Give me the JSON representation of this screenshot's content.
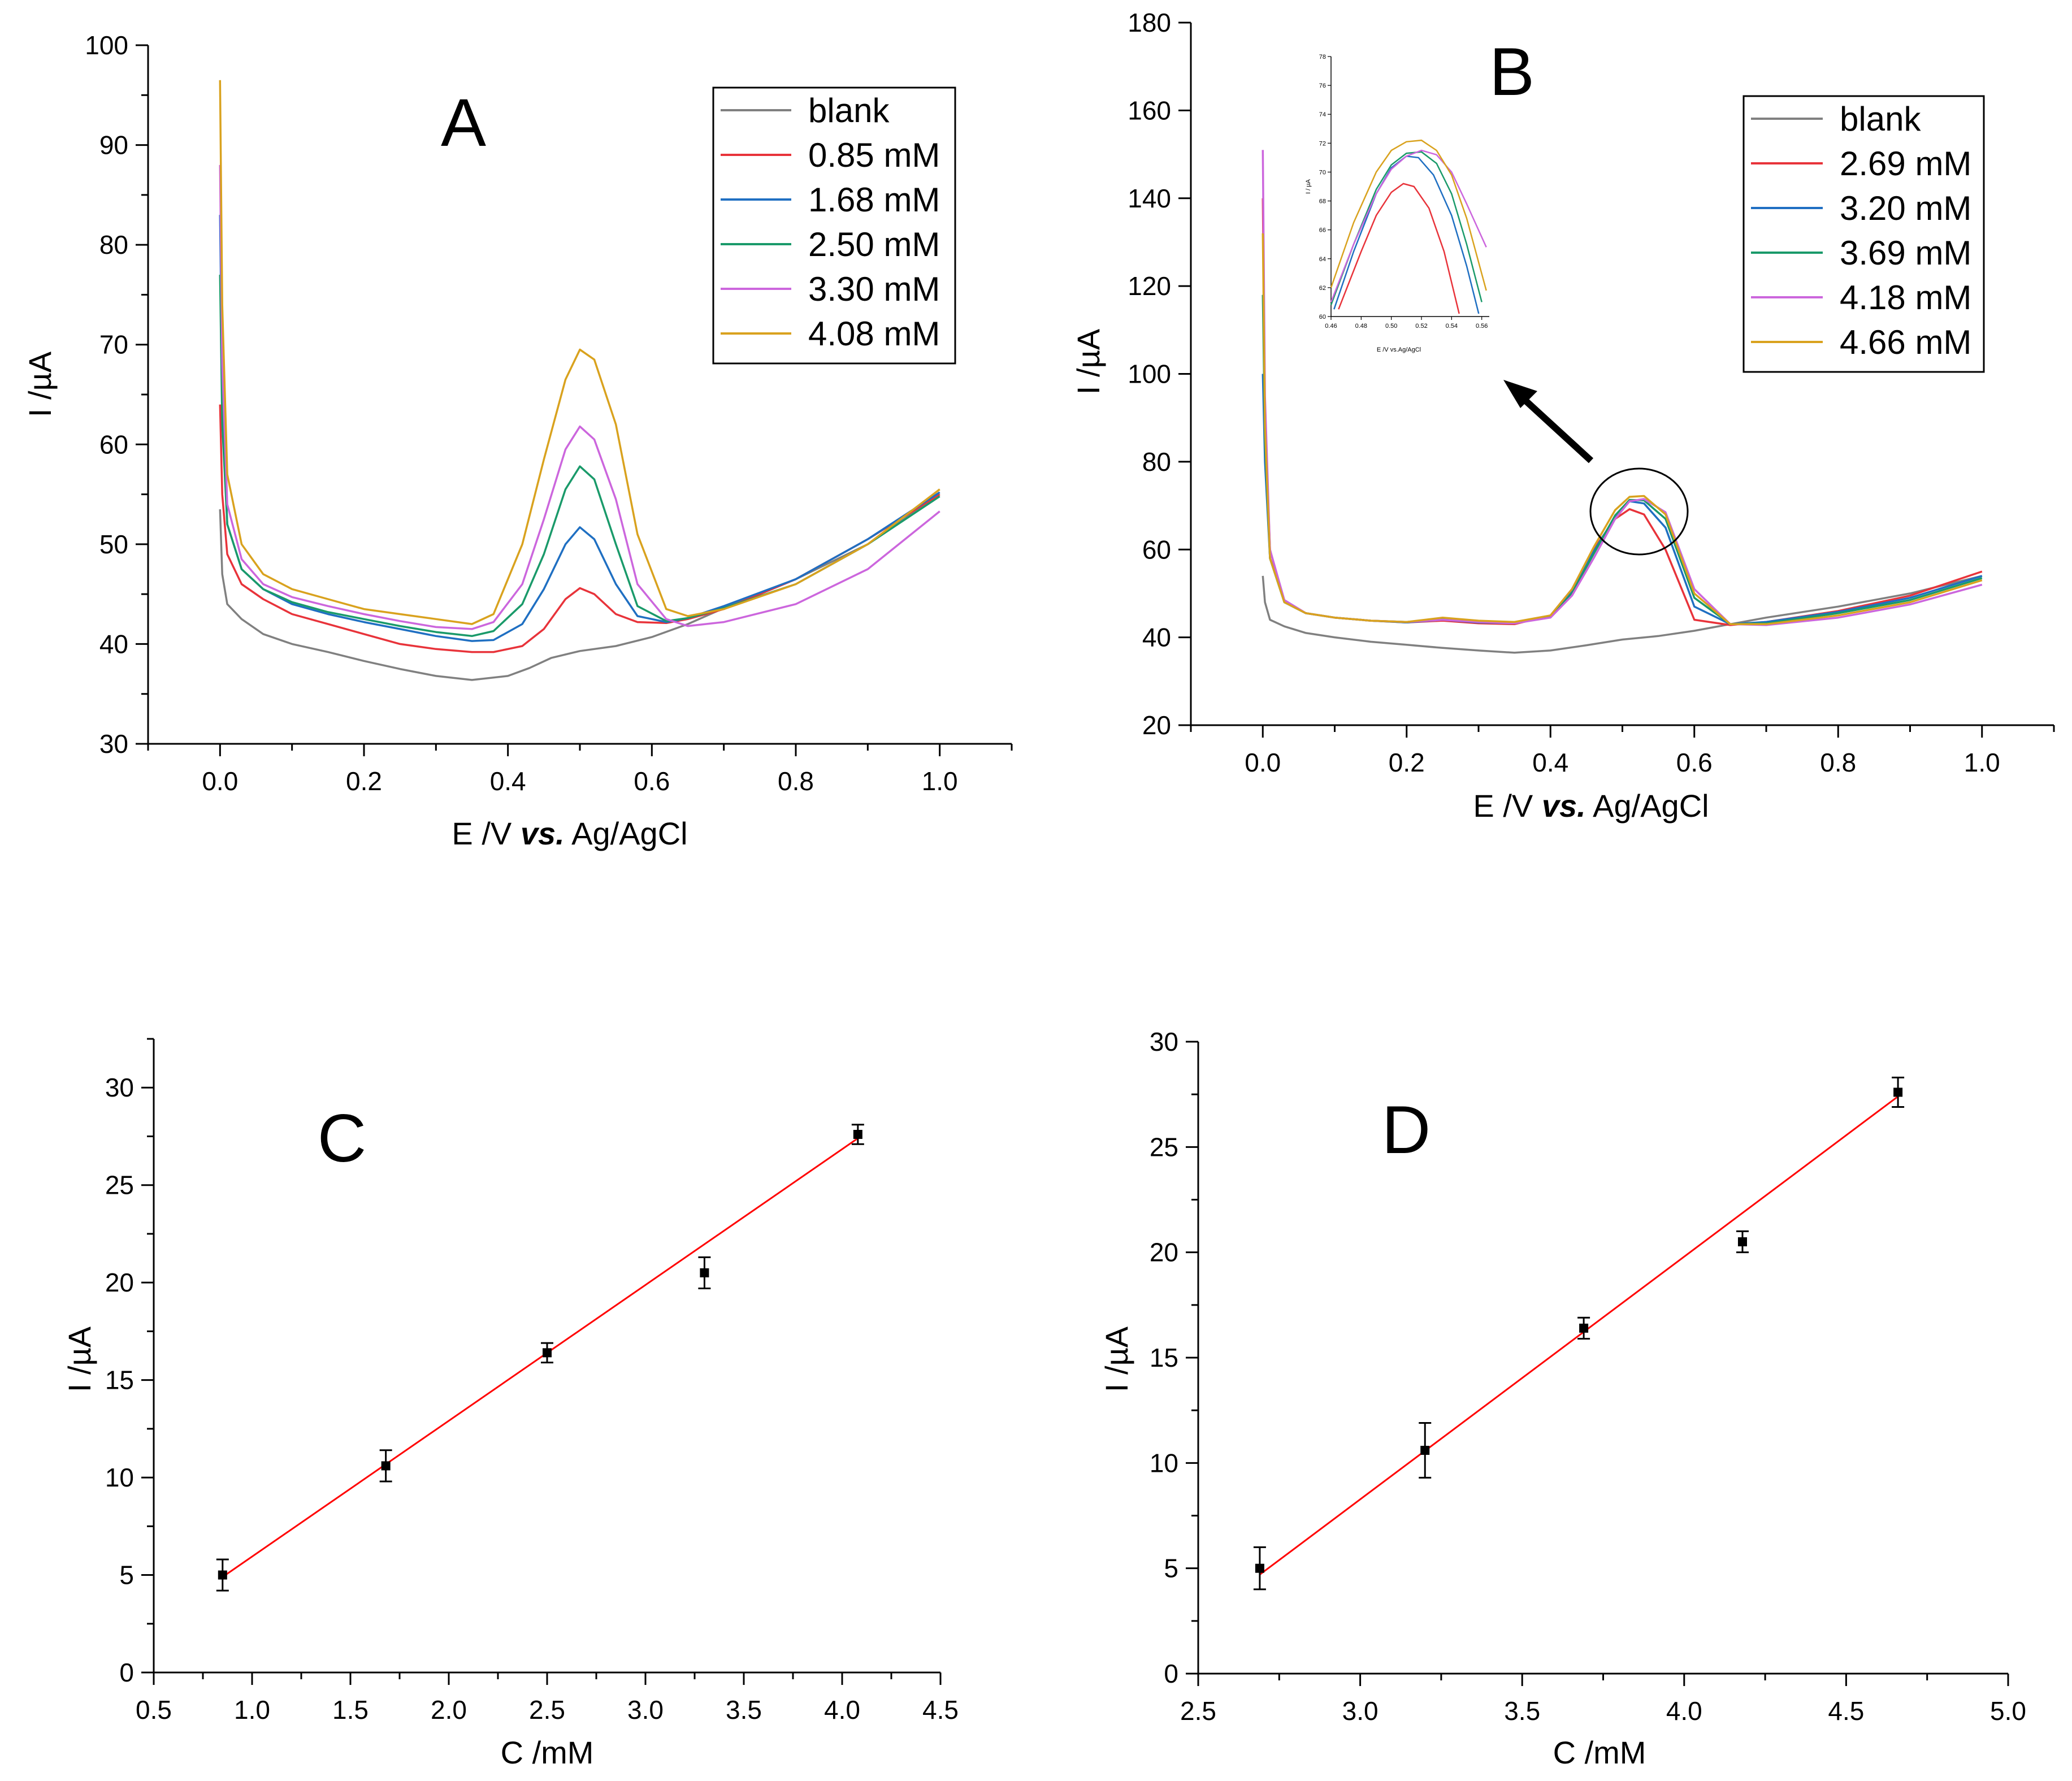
{
  "figure": {
    "panels": [
      "A",
      "B",
      "C",
      "D"
    ]
  },
  "chart_data": [
    {
      "panel": "A",
      "type": "line",
      "xlabel_main": "E /V ",
      "xlabel_italic": "vs.",
      "xlabel_tail": " Ag/AgCl",
      "ylabel": "I /µA",
      "xlim": [
        -0.1,
        1.1
      ],
      "ylim": [
        30,
        100
      ],
      "xticks": [
        "0.0",
        "0.2",
        "0.4",
        "0.6",
        "0.8",
        "1.0"
      ],
      "yticks": [
        "30",
        "40",
        "50",
        "60",
        "70",
        "80",
        "90",
        "100"
      ],
      "legend_position": "top-right",
      "series": [
        {
          "name": "blank",
          "color": "#808080",
          "x": [
            0.0,
            0.003,
            0.01,
            0.03,
            0.06,
            0.1,
            0.15,
            0.2,
            0.25,
            0.3,
            0.35,
            0.4,
            0.43,
            0.46,
            0.5,
            0.55,
            0.6,
            0.65,
            0.7,
            0.8,
            0.9,
            1.0
          ],
          "y": [
            53.5,
            47.0,
            44.0,
            42.5,
            41.0,
            40.0,
            39.2,
            38.3,
            37.5,
            36.8,
            36.4,
            36.8,
            37.6,
            38.6,
            39.3,
            39.8,
            40.7,
            42.0,
            43.6,
            46.5,
            50.0,
            55.0
          ]
        },
        {
          "name": "0.85 mM",
          "color": "#e8333a",
          "x": [
            0.0,
            0.003,
            0.01,
            0.03,
            0.06,
            0.1,
            0.15,
            0.2,
            0.25,
            0.3,
            0.35,
            0.38,
            0.42,
            0.45,
            0.48,
            0.5,
            0.52,
            0.55,
            0.58,
            0.62,
            0.65,
            0.7,
            0.8,
            0.9,
            1.0
          ],
          "y": [
            64.0,
            55.0,
            49.0,
            46.0,
            44.5,
            43.0,
            42.0,
            41.0,
            40.0,
            39.5,
            39.2,
            39.2,
            39.8,
            41.5,
            44.5,
            45.6,
            45.0,
            43.0,
            42.2,
            42.1,
            42.5,
            43.5,
            46.5,
            50.5,
            55.0
          ]
        },
        {
          "name": "1.68 mM",
          "color": "#1f6fc2",
          "x": [
            0.0,
            0.003,
            0.01,
            0.03,
            0.06,
            0.1,
            0.15,
            0.2,
            0.25,
            0.3,
            0.35,
            0.38,
            0.42,
            0.45,
            0.48,
            0.5,
            0.52,
            0.55,
            0.58,
            0.62,
            0.65,
            0.7,
            0.8,
            0.9,
            1.0
          ],
          "y": [
            83.0,
            65.0,
            52.0,
            47.5,
            45.5,
            44.0,
            43.0,
            42.2,
            41.5,
            40.8,
            40.3,
            40.4,
            42.0,
            45.5,
            50.0,
            51.7,
            50.5,
            46.0,
            42.8,
            42.2,
            42.6,
            43.8,
            46.5,
            50.5,
            55.2
          ]
        },
        {
          "name": "2.50 mM",
          "color": "#1a9a6a",
          "x": [
            0.0,
            0.003,
            0.01,
            0.03,
            0.06,
            0.1,
            0.15,
            0.2,
            0.25,
            0.3,
            0.35,
            0.38,
            0.42,
            0.45,
            0.48,
            0.5,
            0.52,
            0.55,
            0.58,
            0.62,
            0.65,
            0.7,
            0.8,
            0.9,
            1.0
          ],
          "y": [
            77.0,
            62.0,
            52.0,
            47.5,
            45.5,
            44.2,
            43.2,
            42.5,
            41.8,
            41.2,
            40.8,
            41.3,
            44.0,
            49.0,
            55.5,
            57.8,
            56.5,
            50.0,
            43.8,
            42.3,
            42.6,
            43.6,
            46.0,
            50.0,
            54.8
          ]
        },
        {
          "name": "3.30 mM",
          "color": "#cc66dd",
          "x": [
            0.0,
            0.003,
            0.01,
            0.03,
            0.06,
            0.1,
            0.15,
            0.2,
            0.25,
            0.3,
            0.35,
            0.38,
            0.42,
            0.45,
            0.48,
            0.5,
            0.52,
            0.55,
            0.58,
            0.62,
            0.65,
            0.7,
            0.8,
            0.9,
            1.0
          ],
          "y": [
            88.0,
            68.0,
            54.0,
            48.5,
            46.0,
            44.7,
            43.8,
            43.0,
            42.3,
            41.7,
            41.5,
            42.2,
            46.0,
            52.5,
            59.5,
            61.8,
            60.5,
            54.5,
            46.0,
            42.5,
            41.8,
            42.2,
            44.0,
            47.5,
            53.3
          ]
        },
        {
          "name": "4.08 mM",
          "color": "#d9a21e",
          "x": [
            0.0,
            0.003,
            0.01,
            0.03,
            0.06,
            0.1,
            0.15,
            0.2,
            0.25,
            0.3,
            0.35,
            0.38,
            0.42,
            0.45,
            0.48,
            0.5,
            0.52,
            0.55,
            0.58,
            0.62,
            0.65,
            0.7,
            0.8,
            0.9,
            1.0
          ],
          "y": [
            96.5,
            74.0,
            57.0,
            50.0,
            47.0,
            45.5,
            44.5,
            43.5,
            43.0,
            42.5,
            42.0,
            43.0,
            50.0,
            58.5,
            66.5,
            69.5,
            68.5,
            62.0,
            51.0,
            43.5,
            42.8,
            43.5,
            46.0,
            50.0,
            55.5
          ]
        }
      ]
    },
    {
      "panel": "B",
      "type": "line",
      "xlabel_main": "E /V ",
      "xlabel_italic": "vs.",
      "xlabel_tail": " Ag/AgCl",
      "ylabel": "I /µA",
      "xlim": [
        -0.1,
        1.1
      ],
      "ylim": [
        20,
        180
      ],
      "xticks": [
        "0.0",
        "0.2",
        "0.4",
        "0.6",
        "0.8",
        "1.0"
      ],
      "yticks": [
        "20",
        "40",
        "60",
        "80",
        "100",
        "120",
        "140",
        "160",
        "180"
      ],
      "legend_position": "top-right",
      "series": [
        {
          "name": "blank",
          "color": "#808080",
          "x": [
            0.0,
            0.003,
            0.01,
            0.03,
            0.06,
            0.1,
            0.15,
            0.2,
            0.25,
            0.3,
            0.35,
            0.4,
            0.45,
            0.5,
            0.55,
            0.6,
            0.65,
            0.7,
            0.8,
            0.9,
            1.0
          ],
          "y": [
            54.0,
            48.0,
            44.0,
            42.5,
            41.0,
            40.0,
            39.0,
            38.3,
            37.6,
            37.0,
            36.5,
            37.0,
            38.2,
            39.5,
            40.3,
            41.5,
            43.0,
            44.5,
            47.0,
            50.0,
            54.0
          ]
        },
        {
          "name": "2.69 mM",
          "color": "#e8333a",
          "x": [
            0.0,
            0.003,
            0.01,
            0.03,
            0.06,
            0.1,
            0.15,
            0.2,
            0.25,
            0.3,
            0.35,
            0.4,
            0.43,
            0.46,
            0.49,
            0.51,
            0.53,
            0.56,
            0.6,
            0.65,
            0.7,
            0.8,
            0.9,
            1.0
          ],
          "y": [
            140.0,
            90.0,
            60.0,
            48.0,
            45.5,
            44.5,
            43.8,
            43.4,
            43.8,
            43.2,
            43.0,
            45.0,
            51.0,
            60.0,
            67.0,
            69.2,
            68.0,
            60.0,
            44.0,
            42.8,
            43.5,
            46.0,
            49.5,
            55.0
          ]
        },
        {
          "name": "3.20 mM",
          "color": "#1f6fc2",
          "x": [
            0.0,
            0.003,
            0.01,
            0.03,
            0.06,
            0.1,
            0.15,
            0.2,
            0.25,
            0.3,
            0.35,
            0.4,
            0.43,
            0.46,
            0.49,
            0.51,
            0.53,
            0.56,
            0.6,
            0.65,
            0.7,
            0.8,
            0.9,
            1.0
          ],
          "y": [
            100.0,
            80.0,
            58.0,
            48.0,
            45.5,
            44.5,
            43.8,
            43.4,
            44.0,
            43.4,
            43.2,
            44.8,
            50.5,
            59.5,
            67.5,
            71.0,
            70.5,
            65.0,
            47.0,
            43.0,
            43.5,
            45.8,
            49.0,
            54.0
          ]
        },
        {
          "name": "3.69 mM",
          "color": "#1a9a6a",
          "x": [
            0.0,
            0.003,
            0.01,
            0.03,
            0.06,
            0.1,
            0.15,
            0.2,
            0.25,
            0.3,
            0.35,
            0.4,
            0.43,
            0.46,
            0.49,
            0.51,
            0.53,
            0.56,
            0.6,
            0.65,
            0.7,
            0.8,
            0.9,
            1.0
          ],
          "y": [
            118.0,
            85.0,
            58.0,
            48.0,
            45.5,
            44.5,
            43.8,
            43.5,
            44.2,
            43.5,
            43.2,
            44.6,
            50.0,
            59.0,
            67.8,
            71.3,
            71.2,
            67.0,
            49.0,
            43.0,
            43.2,
            45.5,
            48.5,
            53.5
          ]
        },
        {
          "name": "4.18 mM",
          "color": "#cc66dd",
          "x": [
            0.0,
            0.003,
            0.01,
            0.03,
            0.06,
            0.1,
            0.15,
            0.2,
            0.25,
            0.3,
            0.35,
            0.4,
            0.43,
            0.46,
            0.49,
            0.51,
            0.53,
            0.56,
            0.6,
            0.65,
            0.7,
            0.8,
            0.9,
            1.0
          ],
          "y": [
            151.0,
            95.0,
            60.0,
            48.5,
            45.5,
            44.5,
            43.8,
            43.5,
            44.0,
            43.5,
            43.2,
            44.5,
            49.5,
            58.0,
            67.0,
            71.0,
            71.5,
            68.5,
            51.0,
            43.0,
            42.8,
            44.5,
            47.5,
            52.0
          ]
        },
        {
          "name": "4.66 mM",
          "color": "#d9a21e",
          "x": [
            0.0,
            0.003,
            0.01,
            0.03,
            0.06,
            0.1,
            0.15,
            0.2,
            0.25,
            0.3,
            0.35,
            0.4,
            0.43,
            0.46,
            0.49,
            0.51,
            0.53,
            0.56,
            0.6,
            0.65,
            0.7,
            0.8,
            0.9,
            1.0
          ],
          "y": [
            132.0,
            88.0,
            58.0,
            48.0,
            45.5,
            44.5,
            43.8,
            43.5,
            44.5,
            43.8,
            43.5,
            45.0,
            51.0,
            60.5,
            69.0,
            72.0,
            72.2,
            68.0,
            50.0,
            43.0,
            43.0,
            45.0,
            48.0,
            53.0
          ]
        }
      ],
      "inset": {
        "xlabel": "E /V vs.Ag/AgCl",
        "ylabel": "I / µA",
        "xlim": [
          0.46,
          0.565
        ],
        "ylim": [
          60,
          78
        ],
        "xticks": [
          "0.46",
          "0.48",
          "0.50",
          "0.52",
          "0.54",
          "0.56"
        ],
        "yticks": [
          "60",
          "62",
          "64",
          "66",
          "68",
          "70",
          "72",
          "74",
          "76",
          "78"
        ],
        "series": [
          {
            "color": "#e8333a",
            "x": [
              0.465,
              0.48,
              0.49,
              0.5,
              0.508,
              0.515,
              0.525,
              0.535,
              0.545
            ],
            "y": [
              60.5,
              64.5,
              67.0,
              68.6,
              69.2,
              69.0,
              67.5,
              64.5,
              60.2
            ]
          },
          {
            "color": "#1f6fc2",
            "x": [
              0.462,
              0.475,
              0.49,
              0.5,
              0.51,
              0.518,
              0.528,
              0.54,
              0.55,
              0.558
            ],
            "y": [
              60.5,
              64.5,
              68.5,
              70.3,
              71.1,
              71.0,
              69.8,
              67.0,
              63.5,
              60.2
            ]
          },
          {
            "color": "#1a9a6a",
            "x": [
              0.46,
              0.475,
              0.49,
              0.5,
              0.51,
              0.52,
              0.53,
              0.54,
              0.55,
              0.56
            ],
            "y": [
              60.8,
              65.0,
              68.8,
              70.5,
              71.3,
              71.4,
              70.6,
              68.5,
              65.0,
              61.0
            ]
          },
          {
            "color": "#cc66dd",
            "x": [
              0.46,
              0.475,
              0.49,
              0.5,
              0.51,
              0.52,
              0.53,
              0.54,
              0.55,
              0.563
            ],
            "y": [
              61.0,
              65.0,
              68.5,
              70.2,
              71.1,
              71.5,
              71.2,
              70.0,
              67.8,
              64.8
            ]
          },
          {
            "color": "#d9a21e",
            "x": [
              0.46,
              0.475,
              0.49,
              0.5,
              0.51,
              0.52,
              0.53,
              0.54,
              0.55,
              0.563
            ],
            "y": [
              62.0,
              66.5,
              70.0,
              71.5,
              72.1,
              72.2,
              71.5,
              69.8,
              66.8,
              61.8
            ]
          }
        ]
      }
    },
    {
      "panel": "C",
      "type": "scatter",
      "xlabel": "C /mM",
      "ylabel": "I /µA",
      "xlim": [
        0.5,
        4.5
      ],
      "ylim": [
        0,
        32.5
      ],
      "xticks": [
        "0.5",
        "1.0",
        "1.5",
        "2.0",
        "2.5",
        "3.0",
        "3.5",
        "4.0",
        "4.5"
      ],
      "yticks": [
        "0",
        "5",
        "10",
        "15",
        "20",
        "25",
        "30"
      ],
      "points": [
        {
          "x": 0.85,
          "y": 5.0,
          "err": 0.8
        },
        {
          "x": 1.68,
          "y": 10.6,
          "err": 0.8
        },
        {
          "x": 2.5,
          "y": 16.4,
          "err": 0.5
        },
        {
          "x": 3.3,
          "y": 20.5,
          "err": 0.8
        },
        {
          "x": 4.08,
          "y": 27.6,
          "err": 0.5
        }
      ],
      "fit": {
        "color": "#ff0000",
        "x": [
          0.85,
          4.08
        ],
        "y": [
          4.9,
          27.4
        ]
      }
    },
    {
      "panel": "D",
      "type": "scatter",
      "xlabel": "C /mM",
      "ylabel": "I /µA",
      "xlim": [
        2.5,
        5.0
      ],
      "ylim": [
        0,
        30
      ],
      "xticks": [
        "2.5",
        "3.0",
        "3.5",
        "4.0",
        "4.5",
        "5.0"
      ],
      "yticks": [
        "0",
        "5",
        "10",
        "15",
        "20",
        "25",
        "30"
      ],
      "points": [
        {
          "x": 2.69,
          "y": 5.0,
          "err": 1.0
        },
        {
          "x": 3.2,
          "y": 10.6,
          "err": 1.3
        },
        {
          "x": 3.69,
          "y": 16.4,
          "err": 0.5
        },
        {
          "x": 4.18,
          "y": 20.5,
          "err": 0.5
        },
        {
          "x": 4.66,
          "y": 27.6,
          "err": 0.7
        }
      ],
      "fit": {
        "color": "#ff0000",
        "x": [
          2.69,
          4.66
        ],
        "y": [
          4.7,
          27.4
        ]
      }
    }
  ]
}
